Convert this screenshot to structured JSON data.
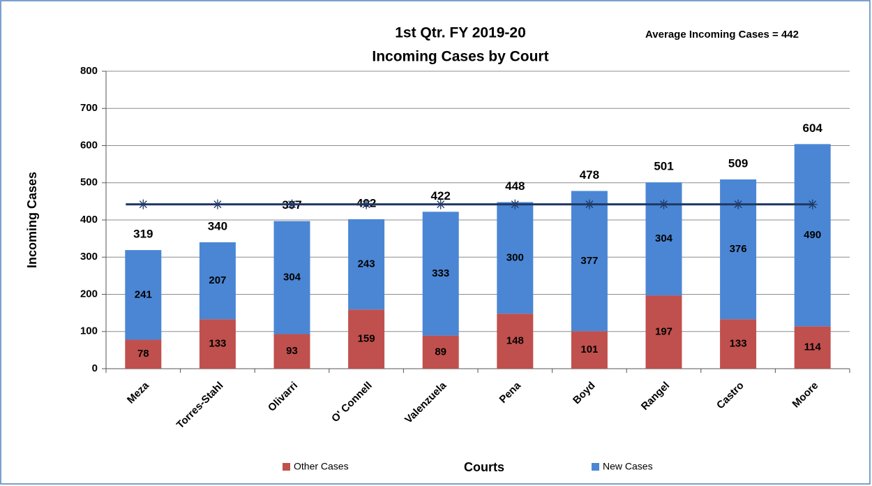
{
  "chart_data": {
    "type": "stacked_bar",
    "title": [
      "1st Qtr. FY 2019-20",
      "Incoming Cases by Court"
    ],
    "annotation": "Average Incoming Cases = 442",
    "y_label": "Incoming Cases",
    "x_label": "Courts",
    "categories": [
      "Meza",
      "Torres-Stahl",
      "Olivarri",
      "O' Connell",
      "Valenzuela",
      "Pena",
      "Boyd",
      "Rangel",
      "Castro",
      "Moore"
    ],
    "series": [
      {
        "name": "Other Cases",
        "color": "#c0504d",
        "values": [
          78,
          133,
          93,
          159,
          89,
          148,
          101,
          197,
          133,
          114
        ]
      },
      {
        "name": "New Cases",
        "color": "#4a86d4",
        "values": [
          241,
          207,
          304,
          243,
          333,
          300,
          377,
          304,
          376,
          490
        ]
      }
    ],
    "totals": [
      319,
      340,
      397,
      402,
      422,
      448,
      478,
      501,
      509,
      604
    ],
    "average": {
      "value": 442,
      "color": "#1f3864"
    },
    "ylim": [
      0,
      800
    ],
    "yticks": [
      0,
      100,
      200,
      300,
      400,
      500,
      600,
      700,
      800
    ],
    "grid": true,
    "legend": "bottom"
  }
}
